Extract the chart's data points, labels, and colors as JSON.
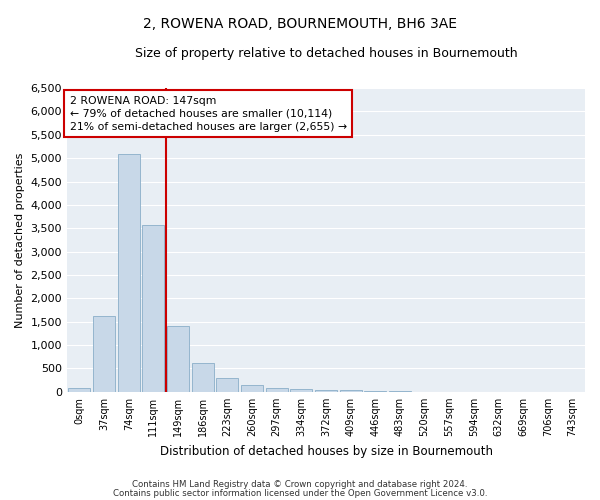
{
  "title": "2, ROWENA ROAD, BOURNEMOUTH, BH6 3AE",
  "subtitle": "Size of property relative to detached houses in Bournemouth",
  "xlabel": "Distribution of detached houses by size in Bournemouth",
  "ylabel": "Number of detached properties",
  "bar_labels": [
    "0sqm",
    "37sqm",
    "74sqm",
    "111sqm",
    "149sqm",
    "186sqm",
    "223sqm",
    "260sqm",
    "297sqm",
    "334sqm",
    "372sqm",
    "409sqm",
    "446sqm",
    "483sqm",
    "520sqm",
    "557sqm",
    "594sqm",
    "632sqm",
    "669sqm",
    "706sqm",
    "743sqm"
  ],
  "bar_values": [
    80,
    1620,
    5080,
    3580,
    1400,
    620,
    300,
    140,
    80,
    50,
    40,
    30,
    20,
    10,
    5,
    5,
    3,
    2,
    2,
    1,
    1
  ],
  "bar_color": "#c8d8e8",
  "bar_edge_color": "#8aaec8",
  "property_label": "2 ROWENA ROAD: 147sqm",
  "annotation_line1": "← 79% of detached houses are smaller (10,114)",
  "annotation_line2": "21% of semi-detached houses are larger (2,655) →",
  "vline_color": "#cc0000",
  "annotation_box_color": "#ffffff",
  "annotation_box_edge": "#cc0000",
  "ylim": [
    0,
    6500
  ],
  "yticks": [
    0,
    500,
    1000,
    1500,
    2000,
    2500,
    3000,
    3500,
    4000,
    4500,
    5000,
    5500,
    6000,
    6500
  ],
  "bg_color": "#e8eef4",
  "grid_color": "#ffffff",
  "fig_bg": "#ffffff",
  "footer1": "Contains HM Land Registry data © Crown copyright and database right 2024.",
  "footer2": "Contains public sector information licensed under the Open Government Licence v3.0.",
  "vline_x": 3.5
}
